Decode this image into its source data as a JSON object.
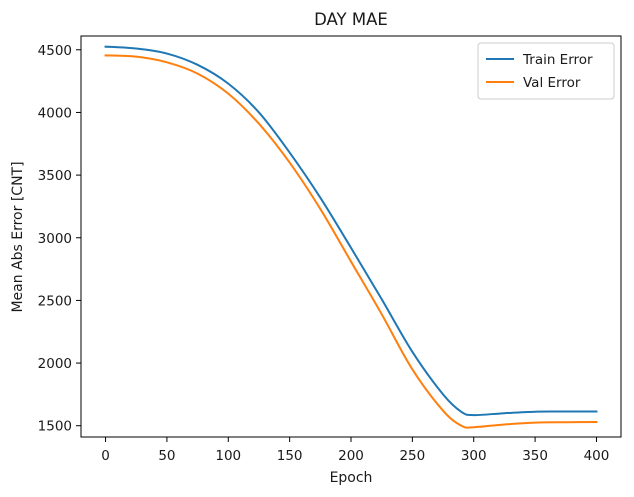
{
  "chart_data": {
    "type": "line",
    "title": "DAY MAE",
    "xlabel": "Epoch",
    "ylabel": "Mean Abs Error [CNT]",
    "xlim": [
      -20,
      420
    ],
    "ylim": [
      1410,
      4610
    ],
    "xticks": [
      0,
      50,
      100,
      150,
      200,
      250,
      300,
      350,
      400
    ],
    "yticks": [
      1500,
      2000,
      2500,
      3000,
      3500,
      4000,
      4500
    ],
    "grid": false,
    "legend_position": "top-right",
    "series": [
      {
        "name": "Train Error",
        "color": "#1f77b4",
        "x": [
          0,
          25,
          50,
          75,
          100,
          125,
          150,
          175,
          200,
          225,
          250,
          275,
          290,
          300,
          325,
          350,
          375,
          400
        ],
        "values": [
          4525,
          4510,
          4470,
          4380,
          4230,
          4000,
          3680,
          3320,
          2920,
          2510,
          2090,
          1750,
          1610,
          1585,
          1600,
          1612,
          1613,
          1613
        ]
      },
      {
        "name": "Val Error",
        "color": "#ff7f0e",
        "x": [
          0,
          25,
          50,
          75,
          100,
          125,
          150,
          175,
          200,
          225,
          250,
          275,
          290,
          300,
          325,
          350,
          375,
          400
        ],
        "values": [
          4455,
          4445,
          4400,
          4310,
          4150,
          3910,
          3600,
          3230,
          2810,
          2390,
          1950,
          1620,
          1500,
          1488,
          1510,
          1525,
          1528,
          1530
        ]
      }
    ]
  }
}
